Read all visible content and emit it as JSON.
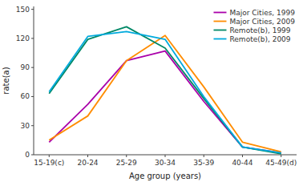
{
  "chart_data": {
    "type": "line",
    "xlabel": "Age group (years)",
    "ylabel": "rate(a)",
    "categories": [
      "15-19(c)",
      "20-24",
      "25-29",
      "30-34",
      "35-39",
      "40-44",
      "45-49(d)"
    ],
    "series": [
      {
        "name": "Major Cities, 1999",
        "color": "#aa00aa",
        "values": [
          13,
          52,
          97,
          107,
          55,
          8,
          2
        ]
      },
      {
        "name": "Major Cities, 2009",
        "color": "#ff8c00",
        "values": [
          15,
          40,
          97,
          123,
          70,
          13,
          3
        ]
      },
      {
        "name": "Remote(b), 1999",
        "color": "#008866",
        "values": [
          63,
          119,
          132,
          110,
          58,
          8,
          1
        ]
      },
      {
        "name": "Remote(b), 2009",
        "color": "#00aadd",
        "values": [
          65,
          122,
          127,
          119,
          60,
          8,
          2
        ]
      }
    ],
    "ylim": [
      0,
      153
    ],
    "yticks": [
      0,
      30,
      60,
      90,
      120,
      150
    ],
    "legend": "upper right",
    "grid": false
  }
}
